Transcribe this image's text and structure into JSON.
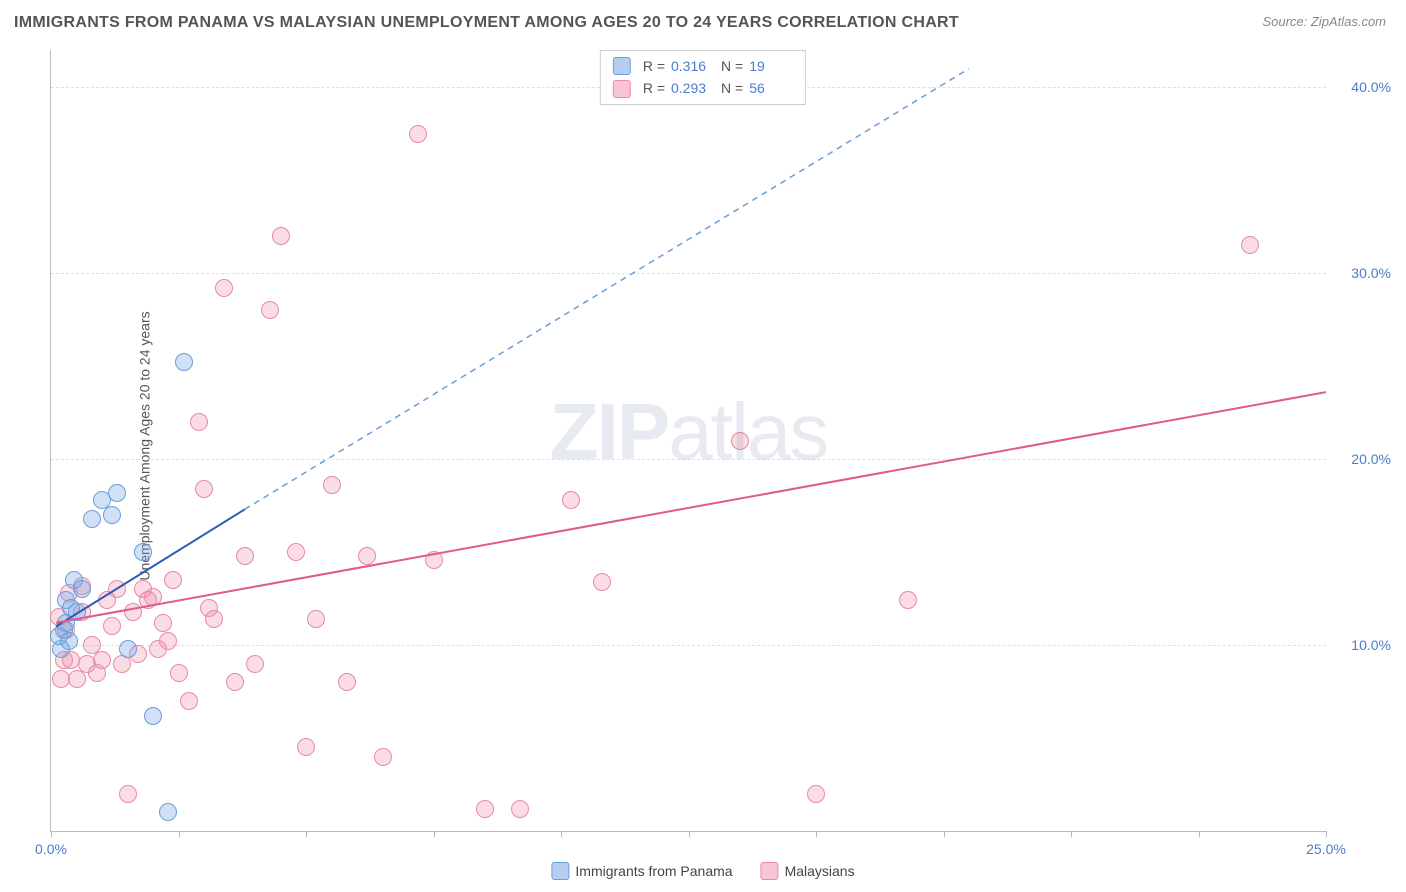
{
  "title": "IMMIGRANTS FROM PANAMA VS MALAYSIAN UNEMPLOYMENT AMONG AGES 20 TO 24 YEARS CORRELATION CHART",
  "source": "Source: ZipAtlas.com",
  "y_axis_label": "Unemployment Among Ages 20 to 24 years",
  "watermark": {
    "part1": "ZIP",
    "part2": "atlas"
  },
  "chart": {
    "type": "scatter",
    "xlim": [
      0,
      25
    ],
    "ylim": [
      0,
      42
    ],
    "x_ticks": [
      0,
      2.5,
      5,
      7.5,
      10,
      12.5,
      15,
      17.5,
      20,
      22.5,
      25
    ],
    "x_tick_labels": {
      "0": "0.0%",
      "25": "25.0%"
    },
    "y_gridlines": [
      10,
      20,
      30,
      40
    ],
    "y_tick_labels": {
      "10": "10.0%",
      "20": "20.0%",
      "30": "30.0%",
      "40": "40.0%"
    },
    "background_color": "#ffffff",
    "grid_color": "#e0e0e0",
    "axis_color": "#bbbbbb",
    "tick_label_color": "#4a7bd0",
    "title_color": "#555555",
    "title_fontsize": 16,
    "label_fontsize": 14,
    "series": [
      {
        "name": "Immigrants from Panama",
        "fill_color": "rgba(120,165,225,0.35)",
        "stroke_color": "#6a9edb",
        "line_color": "#2a5bb8",
        "line_dash_color": "#6a9edb",
        "line_width": 2,
        "marker_radius": 9,
        "R": "0.316",
        "N": "19",
        "regression": {
          "x1": 0.1,
          "y1": 11.0,
          "x2_solid": 3.8,
          "y2_solid": 17.3,
          "x2_dash": 18.0,
          "y2_dash": 41.0
        },
        "points": [
          [
            0.2,
            9.8
          ],
          [
            0.25,
            10.8
          ],
          [
            0.3,
            12.4
          ],
          [
            0.3,
            11.2
          ],
          [
            0.4,
            12.0
          ],
          [
            0.45,
            13.5
          ],
          [
            0.6,
            13.0
          ],
          [
            0.8,
            16.8
          ],
          [
            1.0,
            17.8
          ],
          [
            1.2,
            17.0
          ],
          [
            1.3,
            18.2
          ],
          [
            1.5,
            9.8
          ],
          [
            1.8,
            15.0
          ],
          [
            2.0,
            6.2
          ],
          [
            2.3,
            1.0
          ],
          [
            2.6,
            25.2
          ],
          [
            0.15,
            10.5
          ],
          [
            0.5,
            11.8
          ],
          [
            0.35,
            10.2
          ]
        ]
      },
      {
        "name": "Malaysians",
        "fill_color": "rgba(240,140,170,0.30)",
        "stroke_color": "#e88aa8",
        "line_color": "#e05a8a",
        "line_width": 2,
        "marker_radius": 9,
        "R": "0.293",
        "N": "56",
        "regression": {
          "x1": 0.1,
          "y1": 11.2,
          "x2_solid": 25.0,
          "y2_solid": 23.6
        },
        "points": [
          [
            0.2,
            8.2
          ],
          [
            0.25,
            9.2
          ],
          [
            0.3,
            10.8
          ],
          [
            0.4,
            9.2
          ],
          [
            0.5,
            8.2
          ],
          [
            0.6,
            11.8
          ],
          [
            0.7,
            9.0
          ],
          [
            0.8,
            10.0
          ],
          [
            0.9,
            8.5
          ],
          [
            1.0,
            9.2
          ],
          [
            1.1,
            12.4
          ],
          [
            1.2,
            11.0
          ],
          [
            1.3,
            13.0
          ],
          [
            1.4,
            9.0
          ],
          [
            1.5,
            2.0
          ],
          [
            1.6,
            11.8
          ],
          [
            1.7,
            9.5
          ],
          [
            1.8,
            13.0
          ],
          [
            2.0,
            12.6
          ],
          [
            2.1,
            9.8
          ],
          [
            2.2,
            11.2
          ],
          [
            2.3,
            10.2
          ],
          [
            2.5,
            8.5
          ],
          [
            2.7,
            7.0
          ],
          [
            2.9,
            22.0
          ],
          [
            3.0,
            18.4
          ],
          [
            3.2,
            11.4
          ],
          [
            3.4,
            29.2
          ],
          [
            3.6,
            8.0
          ],
          [
            3.8,
            14.8
          ],
          [
            4.0,
            9.0
          ],
          [
            4.3,
            28.0
          ],
          [
            4.5,
            32.0
          ],
          [
            4.8,
            15.0
          ],
          [
            5.0,
            4.5
          ],
          [
            5.2,
            11.4
          ],
          [
            5.5,
            18.6
          ],
          [
            5.8,
            8.0
          ],
          [
            6.2,
            14.8
          ],
          [
            6.5,
            4.0
          ],
          [
            7.2,
            37.5
          ],
          [
            7.5,
            14.6
          ],
          [
            8.5,
            1.2
          ],
          [
            9.2,
            1.2
          ],
          [
            10.2,
            17.8
          ],
          [
            10.8,
            13.4
          ],
          [
            13.5,
            21.0
          ],
          [
            15.0,
            2.0
          ],
          [
            16.8,
            12.4
          ],
          [
            23.5,
            31.5
          ],
          [
            0.15,
            11.5
          ],
          [
            0.35,
            12.8
          ],
          [
            0.6,
            13.2
          ],
          [
            1.9,
            12.4
          ],
          [
            2.4,
            13.5
          ],
          [
            3.1,
            12.0
          ]
        ]
      }
    ]
  },
  "legend_bottom": {
    "items": [
      {
        "label": "Immigrants from Panama",
        "swatch_fill": "rgba(120,165,225,0.55)",
        "swatch_stroke": "#6a9edb"
      },
      {
        "label": "Malaysians",
        "swatch_fill": "rgba(240,140,170,0.50)",
        "swatch_stroke": "#e88aa8"
      }
    ]
  },
  "legend_top": {
    "r_label": "R  =",
    "n_label": "N  ="
  }
}
